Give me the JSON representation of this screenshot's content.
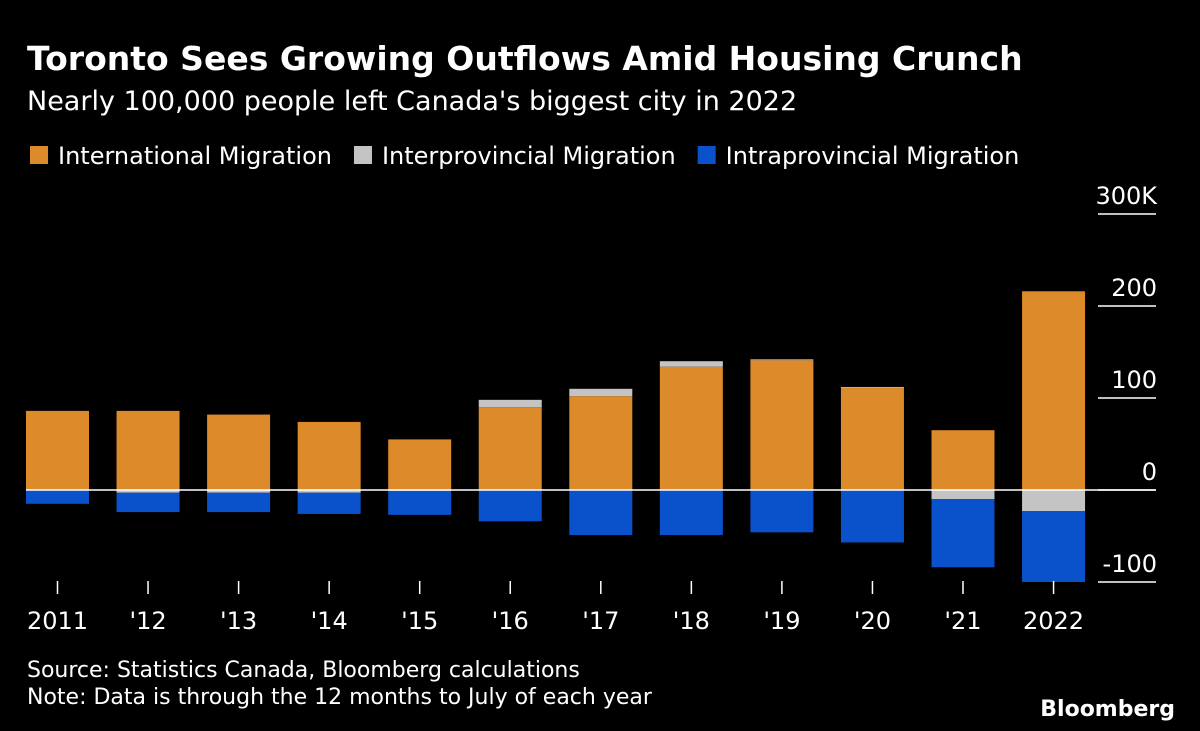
{
  "chart_data": {
    "type": "stacked_bar",
    "title": "Toronto Sees Growing Outflows Amid Housing Crunch",
    "subtitle": "Nearly 100,000 people left Canada's biggest city in 2022",
    "categories": [
      "2011",
      "'12",
      "'13",
      "'14",
      "'15",
      "'16",
      "'17",
      "'18",
      "'19",
      "'20",
      "'21",
      "2022"
    ],
    "series": [
      {
        "name": "International Migration",
        "color": "#dd8a2a",
        "values": [
          86,
          86,
          82,
          74,
          55,
          90,
          102,
          134,
          141,
          111,
          65,
          216
        ]
      },
      {
        "name": "Interprovincial Migration",
        "color": "#c4c4c4",
        "values": [
          0,
          -3,
          -3,
          -3,
          -1,
          8,
          8,
          6,
          1,
          1,
          -10,
          -23
        ]
      },
      {
        "name": "Intraprovincial Migration",
        "color": "#0a52cc",
        "values": [
          -15,
          -21,
          -21,
          -23,
          -26,
          -34,
          -49,
          -49,
          -46,
          -57,
          -74,
          -77
        ]
      }
    ],
    "ylim": [
      -100,
      300
    ],
    "yticks": [
      -100,
      0,
      100,
      200,
      {
        "value": 300,
        "label": "300K"
      }
    ],
    "legend": "top-left",
    "source": "Source: Statistics Canada, Bloomberg calculations",
    "note": "Note: Data is through the 12 months to July of each year",
    "brand": "Bloomberg"
  }
}
